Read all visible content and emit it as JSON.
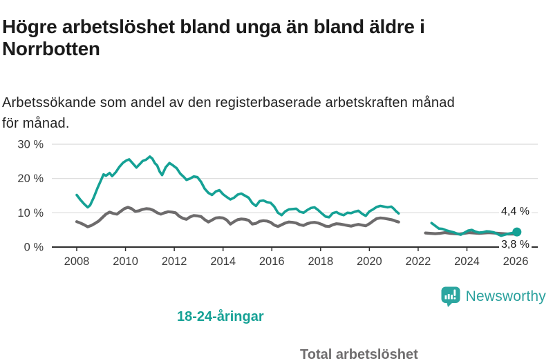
{
  "header": {
    "title_line1": "Högre arbetslöshet bland unga än bland äldre i",
    "title_line2": "Norrbotten",
    "subtitle_line1": "Arbetssökande som andel av den registerbaserade arbetskraften månad",
    "subtitle_line2": "för månad."
  },
  "annotations": {
    "young_series_label": "18-24-åringar",
    "total_series_label": "Total arbetslöshet",
    "young_end_value": "4,4 %",
    "total_end_value": "3,8 %"
  },
  "footer": {
    "brand": "Newsworthy",
    "brand_color": "#2aa19d",
    "logo_icon": "bar-chart-speech-bubble-icon"
  },
  "chart_data": {
    "type": "line",
    "title": "Högre arbetslöshet bland unga än bland äldre i Norrbotten",
    "subtitle": "Arbetssökande som andel av den registerbaserade arbetskraften månad för månad.",
    "unit": "%",
    "grid": true,
    "x_range": [
      2007,
      2026.9
    ],
    "y_range": [
      0,
      30
    ],
    "x_ticks": [
      2008,
      2010,
      2012,
      2014,
      2016,
      2018,
      2020,
      2022,
      2024,
      2026
    ],
    "y_ticks": [
      {
        "value": 0,
        "label": "0 %"
      },
      {
        "value": 10,
        "label": "10 %"
      },
      {
        "value": 20,
        "label": "20 %"
      },
      {
        "value": 30,
        "label": "30 %"
      }
    ],
    "axis_color": "#2d2d2d",
    "grid_color": "#d9d9d9",
    "tick_text_color": "#3b3b3b",
    "series": [
      {
        "name": "Total arbetslöshet",
        "color": "#6d6b6c",
        "width": 4.2,
        "end_label": "3,8 %",
        "end_dot": false,
        "segments": [
          [
            [
              2008.0,
              7.4
            ],
            [
              2008.15,
              7.0
            ],
            [
              2008.3,
              6.5
            ],
            [
              2008.45,
              5.9
            ],
            [
              2008.6,
              6.3
            ],
            [
              2008.75,
              6.9
            ],
            [
              2008.9,
              7.6
            ],
            [
              2009.05,
              8.6
            ],
            [
              2009.2,
              9.6
            ],
            [
              2009.35,
              10.2
            ],
            [
              2009.5,
              9.8
            ],
            [
              2009.65,
              9.6
            ],
            [
              2009.8,
              10.4
            ],
            [
              2009.95,
              11.2
            ],
            [
              2010.1,
              11.6
            ],
            [
              2010.25,
              11.2
            ],
            [
              2010.4,
              10.4
            ],
            [
              2010.55,
              10.6
            ],
            [
              2010.7,
              11.0
            ],
            [
              2010.85,
              11.2
            ],
            [
              2011.0,
              11.1
            ],
            [
              2011.15,
              10.7
            ],
            [
              2011.3,
              10.0
            ],
            [
              2011.45,
              9.6
            ],
            [
              2011.6,
              10.0
            ],
            [
              2011.75,
              10.3
            ],
            [
              2011.9,
              10.2
            ],
            [
              2012.05,
              10.0
            ],
            [
              2012.2,
              9.0
            ],
            [
              2012.35,
              8.4
            ],
            [
              2012.5,
              8.1
            ],
            [
              2012.65,
              8.8
            ],
            [
              2012.8,
              9.2
            ],
            [
              2012.95,
              9.1
            ],
            [
              2013.1,
              8.9
            ],
            [
              2013.25,
              8.0
            ],
            [
              2013.4,
              7.3
            ],
            [
              2013.55,
              7.9
            ],
            [
              2013.7,
              8.5
            ],
            [
              2013.85,
              8.6
            ],
            [
              2014.0,
              8.5
            ],
            [
              2014.15,
              7.9
            ],
            [
              2014.3,
              6.7
            ],
            [
              2014.45,
              7.4
            ],
            [
              2014.6,
              8.0
            ],
            [
              2014.75,
              8.2
            ],
            [
              2014.9,
              8.1
            ],
            [
              2015.05,
              7.8
            ],
            [
              2015.2,
              6.7
            ],
            [
              2015.35,
              6.9
            ],
            [
              2015.5,
              7.5
            ],
            [
              2015.65,
              7.7
            ],
            [
              2015.8,
              7.6
            ],
            [
              2015.95,
              7.2
            ],
            [
              2016.1,
              6.4
            ],
            [
              2016.25,
              6.0
            ],
            [
              2016.4,
              6.5
            ],
            [
              2016.55,
              7.0
            ],
            [
              2016.7,
              7.3
            ],
            [
              2016.85,
              7.2
            ],
            [
              2017.0,
              7.0
            ],
            [
              2017.15,
              6.5
            ],
            [
              2017.3,
              6.3
            ],
            [
              2017.45,
              6.8
            ],
            [
              2017.6,
              7.1
            ],
            [
              2017.75,
              7.2
            ],
            [
              2017.9,
              7.0
            ],
            [
              2018.05,
              6.6
            ],
            [
              2018.2,
              6.1
            ],
            [
              2018.35,
              6.0
            ],
            [
              2018.5,
              6.5
            ],
            [
              2018.65,
              6.8
            ],
            [
              2018.8,
              6.7
            ],
            [
              2018.95,
              6.5
            ],
            [
              2019.1,
              6.3
            ],
            [
              2019.25,
              6.1
            ],
            [
              2019.4,
              6.4
            ],
            [
              2019.55,
              6.6
            ],
            [
              2019.7,
              6.4
            ],
            [
              2019.85,
              6.2
            ],
            [
              2020.0,
              6.8
            ],
            [
              2020.15,
              7.6
            ],
            [
              2020.3,
              8.3
            ],
            [
              2020.45,
              8.5
            ],
            [
              2020.6,
              8.4
            ],
            [
              2020.75,
              8.2
            ],
            [
              2020.9,
              8.0
            ],
            [
              2021.0,
              7.8
            ],
            [
              2021.1,
              7.5
            ],
            [
              2021.2,
              7.3
            ]
          ],
          [
            [
              2022.3,
              4.1
            ],
            [
              2022.5,
              4.0
            ],
            [
              2022.7,
              3.9
            ],
            [
              2022.9,
              4.0
            ],
            [
              2023.1,
              4.2
            ],
            [
              2023.3,
              4.0
            ],
            [
              2023.5,
              3.9
            ],
            [
              2023.7,
              3.8
            ],
            [
              2023.9,
              4.0
            ],
            [
              2024.1,
              4.2
            ],
            [
              2024.3,
              4.1
            ],
            [
              2024.5,
              4.0
            ],
            [
              2024.7,
              4.1
            ],
            [
              2024.9,
              4.2
            ],
            [
              2025.1,
              4.1
            ],
            [
              2025.3,
              4.0
            ],
            [
              2025.5,
              3.9
            ],
            [
              2025.7,
              3.8
            ],
            [
              2025.9,
              3.8
            ],
            [
              2026.05,
              3.8
            ]
          ]
        ]
      },
      {
        "name": "18-24-åringar",
        "color": "#15a195",
        "width": 3.6,
        "end_label": "4,4 %",
        "end_dot": true,
        "segments": [
          [
            [
              2008.0,
              15.2
            ],
            [
              2008.15,
              13.8
            ],
            [
              2008.3,
              12.6
            ],
            [
              2008.45,
              11.6
            ],
            [
              2008.55,
              12.2
            ],
            [
              2008.7,
              14.5
            ],
            [
              2008.85,
              17.2
            ],
            [
              2009.0,
              19.6
            ],
            [
              2009.1,
              21.2
            ],
            [
              2009.2,
              20.8
            ],
            [
              2009.35,
              21.6
            ],
            [
              2009.45,
              20.7
            ],
            [
              2009.6,
              21.8
            ],
            [
              2009.75,
              23.4
            ],
            [
              2009.9,
              24.6
            ],
            [
              2010.05,
              25.3
            ],
            [
              2010.15,
              25.6
            ],
            [
              2010.3,
              24.4
            ],
            [
              2010.45,
              23.2
            ],
            [
              2010.6,
              24.3
            ],
            [
              2010.7,
              25.1
            ],
            [
              2010.85,
              25.5
            ],
            [
              2011.0,
              26.4
            ],
            [
              2011.1,
              25.8
            ],
            [
              2011.2,
              24.5
            ],
            [
              2011.3,
              23.8
            ],
            [
              2011.4,
              22.0
            ],
            [
              2011.5,
              21.0
            ],
            [
              2011.65,
              23.3
            ],
            [
              2011.8,
              24.5
            ],
            [
              2011.95,
              23.8
            ],
            [
              2012.1,
              23.0
            ],
            [
              2012.25,
              21.4
            ],
            [
              2012.4,
              20.4
            ],
            [
              2012.5,
              19.6
            ],
            [
              2012.65,
              20.0
            ],
            [
              2012.8,
              20.6
            ],
            [
              2012.95,
              20.4
            ],
            [
              2013.1,
              19.0
            ],
            [
              2013.25,
              17.0
            ],
            [
              2013.4,
              15.8
            ],
            [
              2013.55,
              15.2
            ],
            [
              2013.7,
              16.2
            ],
            [
              2013.85,
              16.6
            ],
            [
              2014.0,
              15.4
            ],
            [
              2014.15,
              14.6
            ],
            [
              2014.3,
              13.9
            ],
            [
              2014.45,
              14.4
            ],
            [
              2014.6,
              15.3
            ],
            [
              2014.75,
              15.6
            ],
            [
              2014.9,
              15.0
            ],
            [
              2015.05,
              14.4
            ],
            [
              2015.2,
              12.8
            ],
            [
              2015.35,
              12.0
            ],
            [
              2015.5,
              13.4
            ],
            [
              2015.65,
              13.6
            ],
            [
              2015.8,
              13.1
            ],
            [
              2015.95,
              12.9
            ],
            [
              2016.1,
              11.8
            ],
            [
              2016.25,
              10.0
            ],
            [
              2016.4,
              9.3
            ],
            [
              2016.55,
              10.4
            ],
            [
              2016.7,
              11.0
            ],
            [
              2016.85,
              11.1
            ],
            [
              2017.0,
              11.2
            ],
            [
              2017.15,
              10.3
            ],
            [
              2017.3,
              10.0
            ],
            [
              2017.45,
              10.8
            ],
            [
              2017.6,
              11.4
            ],
            [
              2017.75,
              11.6
            ],
            [
              2017.9,
              10.8
            ],
            [
              2018.05,
              9.8
            ],
            [
              2018.2,
              8.9
            ],
            [
              2018.35,
              8.7
            ],
            [
              2018.5,
              9.9
            ],
            [
              2018.65,
              10.2
            ],
            [
              2018.8,
              9.6
            ],
            [
              2018.95,
              9.3
            ],
            [
              2019.1,
              10.0
            ],
            [
              2019.25,
              9.9
            ],
            [
              2019.4,
              10.3
            ],
            [
              2019.55,
              10.6
            ],
            [
              2019.7,
              9.7
            ],
            [
              2019.85,
              9.1
            ],
            [
              2020.0,
              10.4
            ],
            [
              2020.15,
              11.0
            ],
            [
              2020.3,
              11.7
            ],
            [
              2020.45,
              12.0
            ],
            [
              2020.6,
              11.8
            ],
            [
              2020.75,
              11.6
            ],
            [
              2020.9,
              11.8
            ],
            [
              2021.0,
              11.2
            ],
            [
              2021.1,
              10.4
            ],
            [
              2021.2,
              9.8
            ]
          ],
          [
            [
              2022.55,
              7.0
            ],
            [
              2022.7,
              6.2
            ],
            [
              2022.85,
              5.4
            ],
            [
              2023.0,
              5.3
            ],
            [
              2023.15,
              4.9
            ],
            [
              2023.3,
              4.6
            ],
            [
              2023.45,
              4.3
            ],
            [
              2023.6,
              3.9
            ],
            [
              2023.75,
              3.6
            ],
            [
              2023.9,
              4.2
            ],
            [
              2024.05,
              4.8
            ],
            [
              2024.2,
              5.0
            ],
            [
              2024.35,
              4.5
            ],
            [
              2024.5,
              4.2
            ],
            [
              2024.65,
              4.3
            ],
            [
              2024.8,
              4.6
            ],
            [
              2024.95,
              4.5
            ],
            [
              2025.1,
              4.3
            ],
            [
              2025.25,
              3.8
            ],
            [
              2025.4,
              3.3
            ],
            [
              2025.55,
              3.6
            ],
            [
              2025.7,
              3.9
            ],
            [
              2025.85,
              4.1
            ],
            [
              2026.0,
              4.3
            ],
            [
              2026.05,
              4.4
            ]
          ]
        ]
      }
    ]
  }
}
